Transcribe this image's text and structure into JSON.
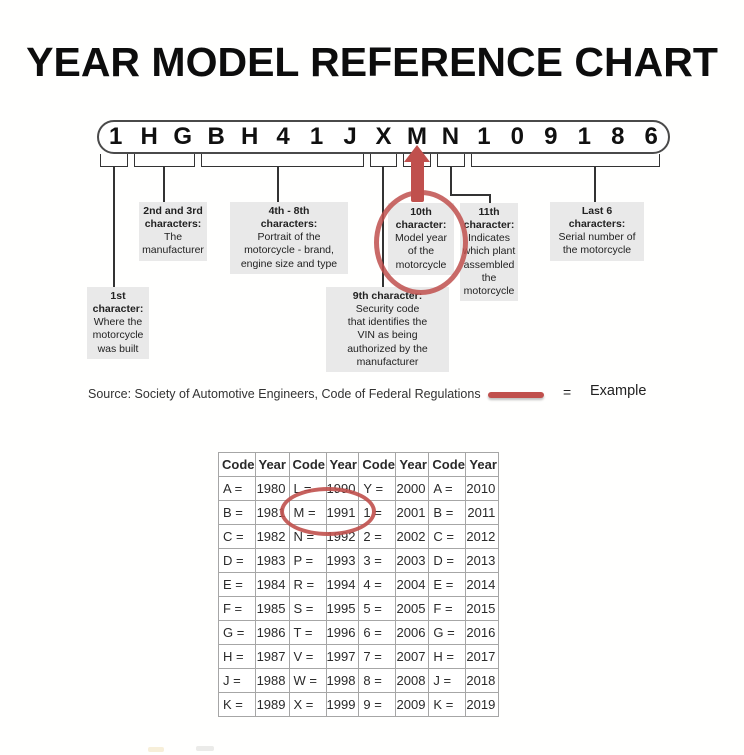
{
  "title": "YEAR MODEL REFERENCE CHART",
  "vin": {
    "characters": [
      "1",
      "H",
      "G",
      "B",
      "H",
      "4",
      "1",
      "J",
      "X",
      "M",
      "N",
      "1",
      "0",
      "9",
      "1",
      "8",
      "6"
    ]
  },
  "callouts": {
    "char1": {
      "heading": "1st\ncharacter:",
      "body": "Where the\nmotorcycle\nwas built"
    },
    "char2_3": {
      "heading": "2nd and 3rd\ncharacters:",
      "body": "The\nmanufacturer"
    },
    "char4_8": {
      "heading": "4th - 8th\ncharacters:",
      "body": "Portrait of the\nmotorcycle - brand,\nengine size and type"
    },
    "char9": {
      "heading": "9th character:",
      "body": "Security code\nthat identifies the\nVIN as being\nauthorized by the\nmanufacturer"
    },
    "char10": {
      "heading": "10th\ncharacter:",
      "body": "Model year\nof the\nmotorcycle"
    },
    "char11": {
      "heading": "11th\ncharacter:",
      "body": "Indicates\nwhich plant\nassembled\nthe\nmotorcycle"
    },
    "last6": {
      "heading": "Last 6\ncharacters:",
      "body": "Serial number of\nthe motorcycle"
    }
  },
  "source": {
    "text": "Source:  Society of Automotive Engineers, Code of Federal Regulations"
  },
  "legend": {
    "equals": "=",
    "label": "Example"
  },
  "highlights": {
    "example_vin_character": "M",
    "circled_callout": "10th character",
    "circled_table_cells": [
      "M =",
      "1991"
    ]
  },
  "colors": {
    "accent_red": "#c0504d",
    "callout_gray": "#e9e9e9"
  },
  "table": {
    "headers": [
      "Code",
      "Year",
      "Code",
      "Year",
      "Code",
      "Year",
      "Code",
      "Year"
    ],
    "rows": [
      [
        "A =",
        "1980",
        "L =",
        "1990",
        "Y =",
        "2000",
        "A =",
        "2010"
      ],
      [
        "B =",
        "1981",
        "M =",
        "1991",
        "1 =",
        "2001",
        "B =",
        "2011"
      ],
      [
        "C =",
        "1982",
        "N =",
        "1992",
        "2 =",
        "2002",
        "C =",
        "2012"
      ],
      [
        "D =",
        "1983",
        "P =",
        "1993",
        "3 =",
        "2003",
        "D =",
        "2013"
      ],
      [
        "E =",
        "1984",
        "R =",
        "1994",
        "4 =",
        "2004",
        "E =",
        "2014"
      ],
      [
        "F =",
        "1985",
        "S =",
        "1995",
        "5 =",
        "2005",
        "F =",
        "2015"
      ],
      [
        "G =",
        "1986",
        "T =",
        "1996",
        "6 =",
        "2006",
        "G =",
        "2016"
      ],
      [
        "H =",
        "1987",
        "V =",
        "1997",
        "7 =",
        "2007",
        "H =",
        "2017"
      ],
      [
        "J =",
        "1988",
        "W =",
        "1998",
        "8 =",
        "2008",
        "J =",
        "2018"
      ],
      [
        "K =",
        "1989",
        "X =",
        "1999",
        "9 =",
        "2009",
        "K =",
        "2019"
      ]
    ]
  }
}
